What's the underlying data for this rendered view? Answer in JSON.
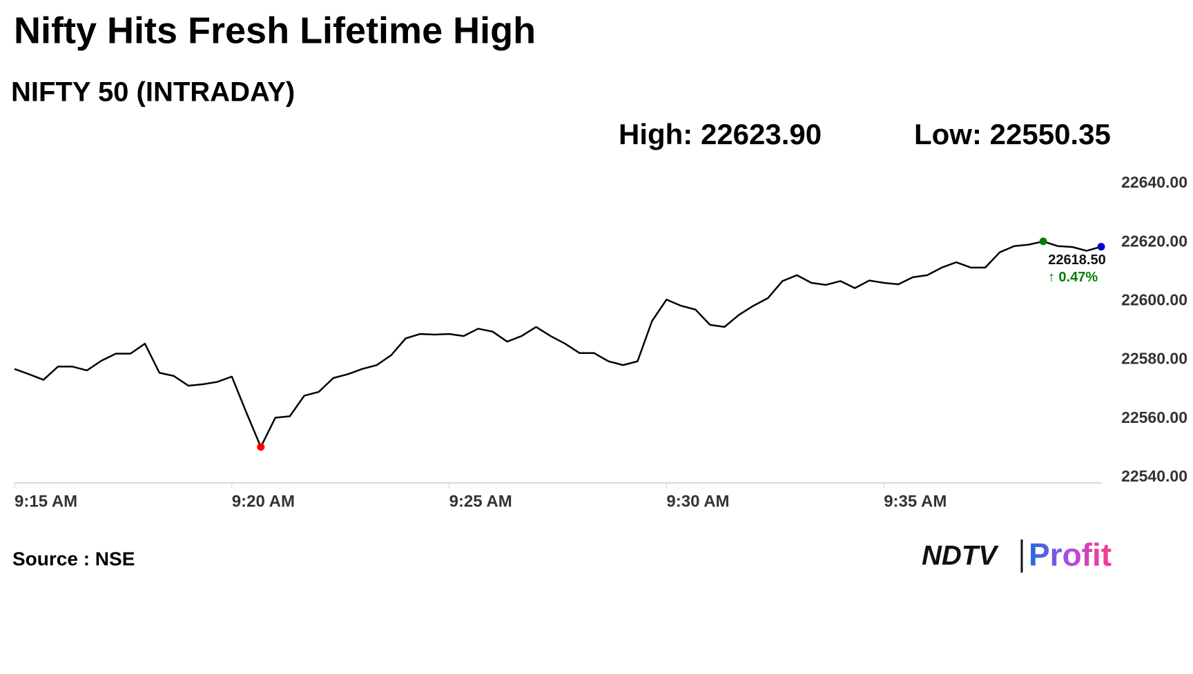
{
  "chart_data": {
    "type": "line",
    "title": "Nifty Hits Fresh Lifetime High",
    "subtitle": "NIFTY 50 (INTRADAY)",
    "high_label": "High: 22623.90",
    "low_label": "Low: 22550.35",
    "source": "Source : NSE",
    "logo": {
      "brand": "NDTV",
      "product": "Profit"
    },
    "categories": [
      "9:15 AM",
      null,
      null,
      null,
      null,
      null,
      null,
      null,
      null,
      null,
      null,
      null,
      null,
      null,
      null,
      "9:20 AM",
      null,
      null,
      null,
      null,
      null,
      null,
      null,
      null,
      null,
      null,
      null,
      null,
      null,
      null,
      "9:25 AM",
      null,
      null,
      null,
      null,
      null,
      null,
      null,
      null,
      null,
      null,
      null,
      null,
      null,
      null,
      "9:30 AM",
      null,
      null,
      null,
      null,
      null,
      null,
      null,
      null,
      null,
      null,
      null,
      null,
      null,
      null,
      "9:35 AM",
      null,
      null,
      null,
      null,
      null,
      null,
      null,
      null,
      null,
      null,
      null,
      null,
      null,
      null,
      null
    ],
    "series": [
      {
        "name": "NIFTY 50",
        "color": "#000000",
        "values": [
          22576.9,
          22575.1,
          22573.2,
          22577.7,
          22577.7,
          22576.4,
          22579.7,
          22582.1,
          22582.1,
          22585.5,
          22575.6,
          22574.5,
          22571.2,
          22571.7,
          22572.5,
          22574.3,
          22562.1,
          22550.35,
          22560.3,
          22560.8,
          22567.8,
          22569.1,
          22573.8,
          22575.1,
          22576.9,
          22578.2,
          22581.6,
          22587.3,
          22588.8,
          22588.6,
          22588.8,
          22588.1,
          22590.6,
          22589.6,
          22586.2,
          22588.1,
          22591.2,
          22588.1,
          22585.5,
          22582.3,
          22582.3,
          22579.5,
          22578.2,
          22579.5,
          22593.2,
          22600.5,
          22598.4,
          22597.1,
          22591.9,
          22591.2,
          22595.3,
          22598.4,
          22601.0,
          22606.8,
          22608.8,
          22606.2,
          22605.5,
          22606.8,
          22604.4,
          22607.0,
          22606.2,
          22605.7,
          22608.1,
          22608.8,
          22611.4,
          22613.2,
          22611.4,
          22611.4,
          22616.6,
          22618.7,
          22619.2,
          22620.3,
          22618.7,
          22618.4,
          22617.1,
          22618.5
        ],
        "value_labels": {
          "75": "22618.50"
        }
      }
    ],
    "last_change": "↑ 0.47%",
    "low_color": "#ff0000",
    "high_color": "#008000",
    "last_color": "#0000cc",
    "change_color": "#008000",
    "ylim": [
      22540,
      22640
    ],
    "yticks": [
      {
        "value": 22540,
        "label": "22540.00"
      },
      {
        "value": 22560,
        "label": "22560.00"
      },
      {
        "value": 22580,
        "label": "22580.00"
      },
      {
        "value": 22600,
        "label": "22600.00"
      },
      {
        "value": 22620,
        "label": "22620.00"
      },
      {
        "value": 22640,
        "label": "22640.00"
      }
    ],
    "grid": false
  }
}
